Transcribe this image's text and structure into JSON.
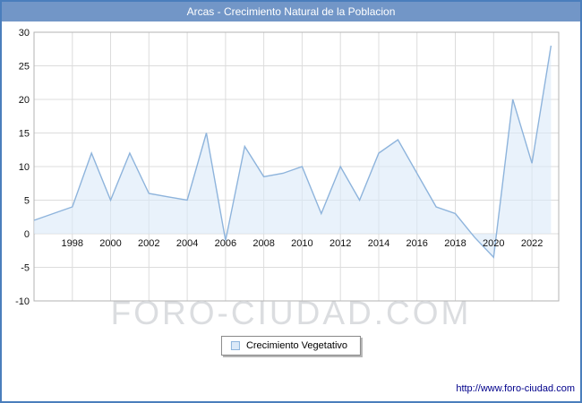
{
  "header": {
    "title": "Arcas - Crecimiento Natural de la Poblacion"
  },
  "legend": {
    "label": "Crecimiento Vegetativo"
  },
  "watermark": "FORO-CIUDAD.COM",
  "footer": {
    "url": "http://www.foro-ciudad.com"
  },
  "colors": {
    "border": "#4a7ebc",
    "titlebar_bg": "#7296c7",
    "titlebar_text": "#ffffff",
    "grid": "#dcdcdc",
    "plot_border": "#b3b3b3",
    "watermark": "#d8dadd",
    "url_text": "#00008b"
  },
  "chart_data": {
    "type": "area",
    "title": "Arcas - Crecimiento Natural de la Poblacion",
    "xlabel": "",
    "ylabel": "",
    "xlim": [
      1996,
      2023.4
    ],
    "ylim": [
      -10,
      30
    ],
    "x_ticks": [
      1998,
      2000,
      2002,
      2004,
      2006,
      2008,
      2010,
      2012,
      2014,
      2016,
      2018,
      2020,
      2022
    ],
    "y_ticks": [
      -10,
      -5,
      0,
      5,
      10,
      15,
      20,
      25,
      30
    ],
    "grid": true,
    "legend_position": "bottom-center",
    "line_color": "#8eb4dc",
    "fill_color": "#dbe9f8",
    "series": [
      {
        "name": "Crecimiento Vegetativo",
        "x": [
          1996,
          1997,
          1998,
          1999,
          2000,
          2001,
          2002,
          2003,
          2004,
          2005,
          2006,
          2007,
          2008,
          2009,
          2010,
          2011,
          2012,
          2013,
          2014,
          2015,
          2016,
          2017,
          2018,
          2019,
          2020,
          2021,
          2022,
          2023
        ],
        "values": [
          2,
          3,
          4,
          12,
          5,
          12,
          6,
          5.5,
          5,
          15,
          -1,
          13,
          8.5,
          9,
          10,
          3,
          10,
          5,
          12,
          14,
          9,
          4,
          3,
          -0.5,
          -3.5,
          20,
          10.5,
          28
        ]
      }
    ]
  }
}
